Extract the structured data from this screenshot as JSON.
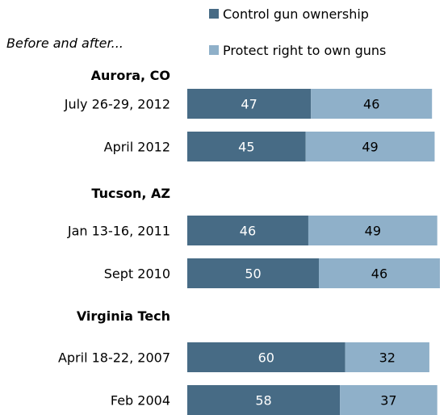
{
  "chart_data": {
    "type": "bar",
    "orientation": "horizontal",
    "stacked": true,
    "subtitle": "Before and after...",
    "legend": {
      "position": "top-right",
      "items": [
        {
          "label": "Control gun ownership",
          "color": "#476b85"
        },
        {
          "label": "Protect right to own guns",
          "color": "#8fb0c9"
        }
      ]
    },
    "groups": [
      {
        "name": "Aurora, CO",
        "rows": [
          {
            "label": "July 26-29, 2012",
            "control": 47,
            "protect": 46
          },
          {
            "label": "April 2012",
            "control": 45,
            "protect": 49
          }
        ]
      },
      {
        "name": "Tucson, AZ",
        "rows": [
          {
            "label": "Jan 13-16, 2011",
            "control": 46,
            "protect": 49
          },
          {
            "label": "Sept 2010",
            "control": 50,
            "protect": 46
          }
        ]
      },
      {
        "name": "Virginia Tech",
        "rows": [
          {
            "label": "April 18-22, 2007",
            "control": 60,
            "protect": 32
          },
          {
            "label": "Feb 2004",
            "control": 58,
            "protect": 37
          }
        ]
      }
    ],
    "colors": {
      "control": "#476b85",
      "protect": "#8fb0c9",
      "control_text": "#ffffff",
      "protect_text": "#000000"
    }
  }
}
